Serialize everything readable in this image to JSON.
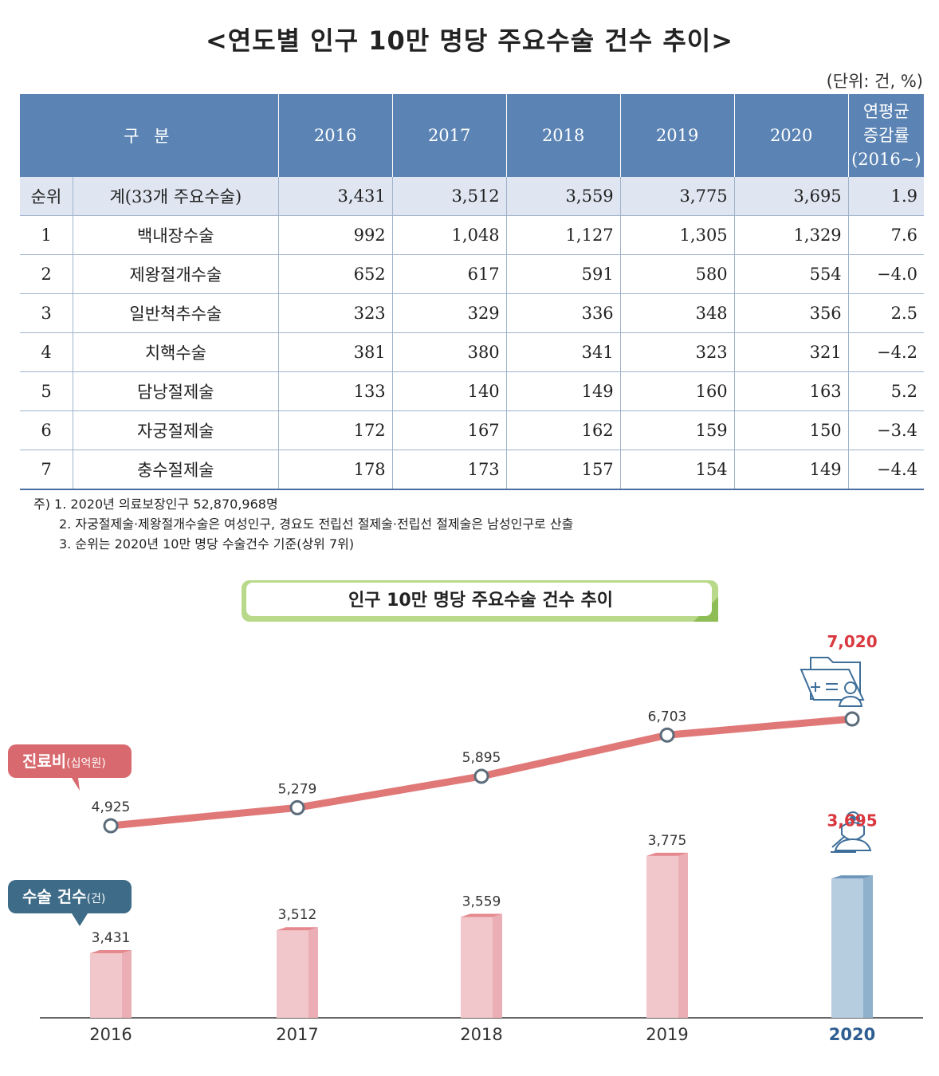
{
  "table": {
    "title": "<연도별 인구 10만 명당 주요수술 건수 추이>",
    "unit": "(단위: 건, %)",
    "header": {
      "category": "구 분",
      "years": [
        "2016",
        "2017",
        "2018",
        "2019",
        "2020"
      ],
      "avg_line1": "연평균",
      "avg_line2": "증감률",
      "avg_line3": "(2016~)"
    },
    "total_row": {
      "rank": "순위",
      "name": "계(33개 주요수술)",
      "values": [
        "3,431",
        "3,512",
        "3,559",
        "3,775",
        "3,695"
      ],
      "avg": "1.9"
    },
    "rows": [
      {
        "rank": "1",
        "name": "백내장수술",
        "values": [
          "992",
          "1,048",
          "1,127",
          "1,305",
          "1,329"
        ],
        "avg": "7.6"
      },
      {
        "rank": "2",
        "name": "제왕절개수술",
        "values": [
          "652",
          "617",
          "591",
          "580",
          "554"
        ],
        "avg": "−4.0"
      },
      {
        "rank": "3",
        "name": "일반척추수술",
        "values": [
          "323",
          "329",
          "336",
          "348",
          "356"
        ],
        "avg": "2.5"
      },
      {
        "rank": "4",
        "name": "치핵수술",
        "values": [
          "381",
          "380",
          "341",
          "323",
          "321"
        ],
        "avg": "−4.2"
      },
      {
        "rank": "5",
        "name": "담낭절제술",
        "values": [
          "133",
          "140",
          "149",
          "160",
          "163"
        ],
        "avg": "5.2"
      },
      {
        "rank": "6",
        "name": "자궁절제술",
        "values": [
          "172",
          "167",
          "162",
          "159",
          "150"
        ],
        "avg": "−3.4"
      },
      {
        "rank": "7",
        "name": "충수절제술",
        "values": [
          "178",
          "173",
          "157",
          "154",
          "149"
        ],
        "avg": "−4.4"
      }
    ],
    "notes": [
      "주) 1. 2020년 의료보장인구 52,870,968명",
      "2. 자궁절제술·제왕절개수술은 여성인구, 경요도 전립선 절제술·전립선 절제술은 남성인구로 산출",
      "3. 순위는 2020년 10만 명당 수술건수 기준(상위 7위)"
    ]
  },
  "chart_data": {
    "type": "bar",
    "title": "인구 10만 명당 주요수술 건수 추이",
    "categories": [
      "2016",
      "2017",
      "2018",
      "2019",
      "2020"
    ],
    "series": [
      {
        "name": "진료비",
        "unit": "(십억원)",
        "chart": "line",
        "values": [
          4925,
          5279,
          5895,
          6703,
          7020
        ],
        "labels": [
          "4,925",
          "5,279",
          "5,895",
          "6,703",
          "7,020"
        ],
        "color": "#e07878"
      },
      {
        "name": "수술 건수",
        "unit": "(건)",
        "chart": "bar",
        "values": [
          3431,
          3512,
          3559,
          3775,
          3695
        ],
        "labels": [
          "3,431",
          "3,512",
          "3,559",
          "3,775",
          "3,695"
        ],
        "color": "#f2c7cb",
        "highlight_color": "#b6cde0"
      }
    ],
    "highlight_category": "2020",
    "highlight_label_color": "#d9383e",
    "highlight_axis_color": "#2e5d91",
    "legend_line_color": "#d86a6f",
    "legend_bar_color": "#3e6b87",
    "icons": [
      "folder-document-icon",
      "surgeon-icon"
    ]
  }
}
